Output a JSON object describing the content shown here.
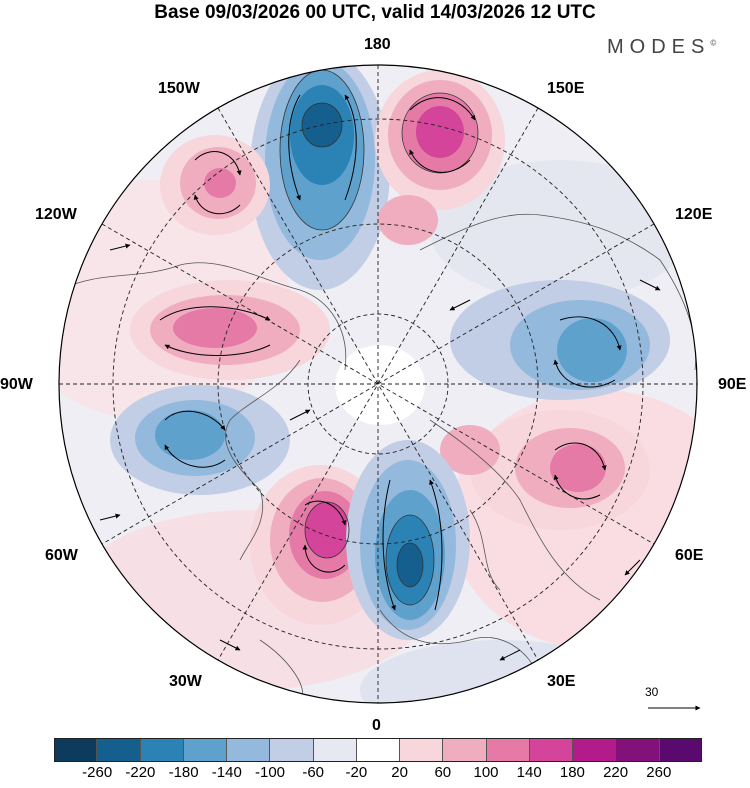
{
  "header": {
    "title": "Base 09/03/2026 00 UTC, valid 14/03/2026 12 UTC",
    "brand": "MODES",
    "brand_mark": "©"
  },
  "map": {
    "projection": "polar stereographic north",
    "longitude_labels": {
      "top": "180",
      "top_right": "150E",
      "right_upper": "120E",
      "right": "90E",
      "right_lower": "60E",
      "bottom_right": "30E",
      "bottom": "0",
      "bottom_left": "30W",
      "left_lower": "60W",
      "left": "90W",
      "left_upper": "120W",
      "top_left": "150W"
    },
    "field": "geopotential height anomaly with wind vectors",
    "anomaly_centres": [
      {
        "sign": "negative",
        "value": -220,
        "sector": "150W-180"
      },
      {
        "sign": "positive",
        "value": 220,
        "sector": "150E-180"
      },
      {
        "sign": "positive",
        "value": 140,
        "sector": "150W"
      },
      {
        "sign": "positive",
        "value": 140,
        "sector": "120W-90W"
      },
      {
        "sign": "negative",
        "value": -140,
        "sector": "90W-60W"
      },
      {
        "sign": "negative",
        "value": -140,
        "sector": "90E-120E"
      },
      {
        "sign": "positive",
        "value": 180,
        "sector": "60E"
      },
      {
        "sign": "positive",
        "value": 220,
        "sector": "30W-0"
      },
      {
        "sign": "negative",
        "value": -260,
        "sector": "0-30E"
      }
    ]
  },
  "reference_vector": {
    "label": "30"
  },
  "colorbar": {
    "tick_labels": [
      "-260",
      "-220",
      "-180",
      "-140",
      "-100",
      "-60",
      "-20",
      "20",
      "60",
      "100",
      "140",
      "180",
      "220",
      "260"
    ],
    "colors": [
      "#0d3b5e",
      "#155f8f",
      "#2a82b5",
      "#5fa1cd",
      "#93b9dc",
      "#c2cde6",
      "#e6e8f2",
      "#ffffff",
      "#f7d6dc",
      "#f0adc0",
      "#e67aa7",
      "#d4449a",
      "#b31b8a",
      "#82127a",
      "#5a0a6e"
    ]
  }
}
